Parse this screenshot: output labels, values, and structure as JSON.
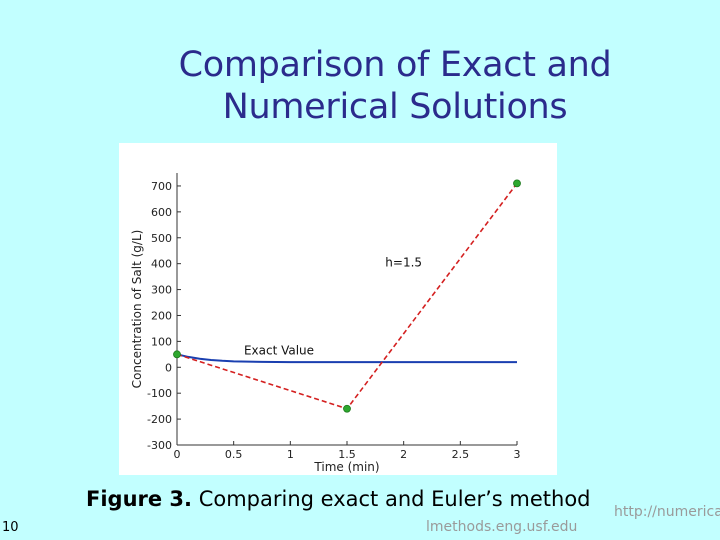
{
  "slide": {
    "title_line1": "Comparison of Exact and",
    "title_line2": "Numerical Solutions",
    "caption_bold": "Figure 3.",
    "caption_text": "Comparing exact and Euler’s method",
    "slide_number": "10",
    "url_left": "lmethods.eng.usf.edu",
    "url_right": "http://numerica"
  },
  "chart_data": {
    "type": "line",
    "xlabel": "Time (min)",
    "ylabel": "Concentration of Salt (g/L)",
    "xlim": [
      0,
      3
    ],
    "ylim": [
      -300,
      750
    ],
    "x_ticks": [
      0,
      0.5,
      1,
      1.5,
      2,
      2.5,
      3
    ],
    "x_tick_labels": [
      "0",
      "0.5",
      "1",
      "1.5",
      "2",
      "2.5",
      "3"
    ],
    "y_ticks": [
      -300,
      -200,
      -100,
      0,
      100,
      200,
      300,
      400,
      500,
      600,
      700
    ],
    "y_tick_labels": [
      "-300",
      "-200",
      "-100",
      "0",
      "100",
      "200",
      "300",
      "400",
      "500",
      "600",
      "700"
    ],
    "grid": false,
    "series": [
      {
        "name": "Exact Value",
        "style": "solid",
        "color": "#1a3fb0",
        "x": [
          0,
          0.1,
          0.2,
          0.3,
          0.4,
          0.5,
          0.75,
          1,
          1.5,
          2,
          2.5,
          3
        ],
        "values": [
          50,
          40,
          33,
          28,
          25,
          23,
          21,
          20,
          20,
          20,
          20,
          20
        ]
      },
      {
        "name": "",
        "style": "dashed",
        "color": "#d42020",
        "marker_color": "#2ea82e",
        "x": [
          0,
          1.5,
          3
        ],
        "values": [
          50,
          -160,
          710
        ]
      }
    ],
    "annotations": [
      {
        "text": "Exact Value",
        "x": 0.9,
        "y": 50
      },
      {
        "text": "h=1.5",
        "x": 2.0,
        "y": 390
      }
    ]
  }
}
